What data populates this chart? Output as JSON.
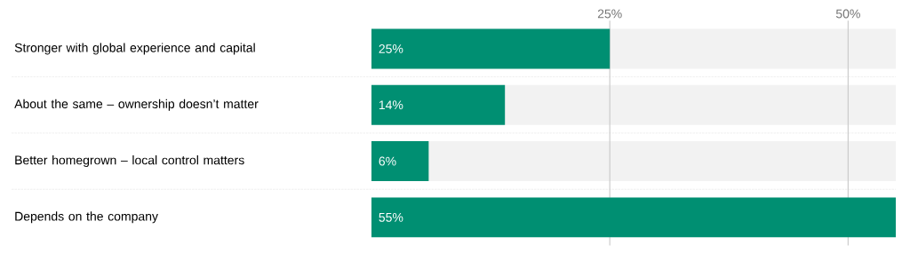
{
  "chart_data": {
    "type": "bar",
    "orientation": "horizontal",
    "categories": [
      "Stronger with global experience and capital",
      "About the same – ownership doesn’t matter",
      "Better homegrown – local control matters",
      "Depends on the company"
    ],
    "values": [
      25,
      14,
      6,
      55
    ],
    "value_labels": [
      "25%",
      "14%",
      "6%",
      "55%"
    ],
    "color": "#008f72",
    "xlim": [
      0,
      55
    ],
    "xticks": [
      {
        "value": 25,
        "label": "25%"
      },
      {
        "value": 50,
        "label": "50%"
      }
    ],
    "grid": "x"
  }
}
